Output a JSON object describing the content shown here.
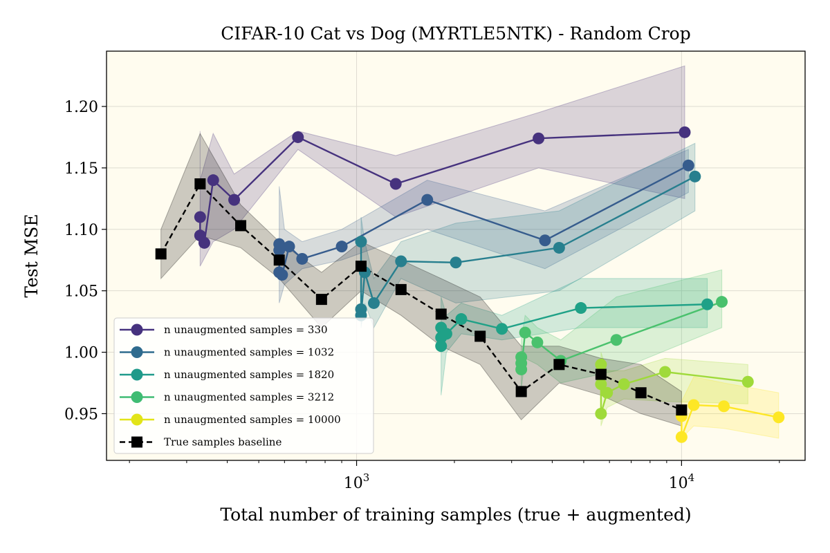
{
  "chart_data": {
    "type": "line",
    "title": "CIFAR-10 Cat vs Dog (MYRTLE5NTK) - Random Crop",
    "xlabel": "Total number of training samples (true + augmented)",
    "ylabel": "Test MSE",
    "x_scale": "log",
    "xlim": [
      170,
      24000
    ],
    "ylim": [
      0.912,
      1.245
    ],
    "x_ticks": [
      {
        "value": 1000,
        "base": "10",
        "exp": "3"
      },
      {
        "value": 10000,
        "base": "10",
        "exp": "4"
      }
    ],
    "y_ticks": [
      0.95,
      1.0,
      1.05,
      1.1,
      1.15,
      1.2
    ],
    "y_tick_labels": [
      "0.95",
      "1.00",
      "1.05",
      "1.10",
      "1.15",
      "1.20"
    ],
    "grid": true,
    "background_color": "#fffcef",
    "legend_position": "lower-left",
    "series": [
      {
        "name": "n unaugmented samples = 330",
        "color": "#46327e",
        "marker": "circle",
        "line_style": "solid",
        "points": [
          [
            330,
            1.11
          ],
          [
            330,
            1.095
          ],
          [
            340,
            1.089
          ],
          [
            362,
            1.14
          ],
          [
            420,
            1.124
          ],
          [
            660,
            1.175
          ],
          [
            1320,
            1.137
          ],
          [
            3630,
            1.174
          ],
          [
            10230,
            1.179
          ]
        ],
        "band": {
          "x": [
            330,
            330,
            362,
            420,
            660,
            1320,
            3630,
            10230
          ],
          "upper": [
            1.18,
            1.14,
            1.178,
            1.145,
            1.18,
            1.16,
            1.195,
            1.233
          ],
          "lower": [
            1.07,
            1.07,
            1.09,
            1.1,
            1.165,
            1.11,
            1.15,
            1.125
          ]
        }
      },
      {
        "name": "n unaugmented samples = 1032",
        "color": "#365c8d",
        "marker": "circle",
        "line_style": "solid",
        "points": [
          [
            578,
            1.088
          ],
          [
            578,
            1.083
          ],
          [
            578,
            1.065
          ],
          [
            590,
            1.063
          ],
          [
            620,
            1.086
          ],
          [
            680,
            1.076
          ],
          [
            900,
            1.086
          ],
          [
            1650,
            1.124
          ],
          [
            3800,
            1.091
          ],
          [
            10500,
            1.152
          ]
        ],
        "band": {
          "x": [
            578,
            600,
            680,
            900,
            1650,
            3800,
            10500
          ],
          "upper": [
            1.135,
            1.1,
            1.09,
            1.1,
            1.14,
            1.115,
            1.165
          ],
          "lower": [
            1.04,
            1.055,
            1.068,
            1.075,
            1.1,
            1.068,
            1.13
          ]
        }
      },
      {
        "name": "n unaugmented samples = 1820",
        "color": "#277f8e",
        "marker": "circle",
        "line_style": "solid",
        "points": [
          [
            1032,
            1.09
          ],
          [
            1032,
            1.035
          ],
          [
            1032,
            1.03
          ],
          [
            1060,
            1.065
          ],
          [
            1130,
            1.04
          ],
          [
            1370,
            1.074
          ],
          [
            2020,
            1.073
          ],
          [
            4200,
            1.085
          ],
          [
            11000,
            1.143
          ]
        ],
        "band": {
          "x": [
            1032,
            1060,
            1130,
            1370,
            2020,
            4200,
            11000
          ],
          "upper": [
            1.11,
            1.09,
            1.06,
            1.09,
            1.105,
            1.115,
            1.17
          ],
          "lower": [
            1.02,
            1.04,
            1.02,
            1.06,
            1.04,
            1.05,
            1.115
          ]
        }
      },
      {
        "name": "n unaugmented samples = 3212",
        "color": "#1fa187",
        "marker": "circle",
        "line_style": "solid",
        "points": [
          [
            1820,
            1.02
          ],
          [
            1820,
            1.012
          ],
          [
            1820,
            1.005
          ],
          [
            1890,
            1.015
          ],
          [
            2100,
            1.027
          ],
          [
            2800,
            1.019
          ],
          [
            4900,
            1.036
          ],
          [
            12000,
            1.039
          ]
        ],
        "band": {
          "x": [
            1820,
            1890,
            2100,
            2800,
            4900,
            12000
          ],
          "upper": [
            1.045,
            1.03,
            1.04,
            1.03,
            1.06,
            1.06
          ],
          "lower": [
            0.965,
            1.0,
            1.015,
            1.01,
            1.02,
            1.02
          ]
        }
      },
      {
        "name": "n unaugmented samples = 3212 (green)",
        "color": "#4ac16d",
        "marker": "circle",
        "line_style": "solid",
        "points": [
          [
            3212,
            0.996
          ],
          [
            3212,
            0.991
          ],
          [
            3212,
            0.986
          ],
          [
            3300,
            1.016
          ],
          [
            3600,
            1.008
          ],
          [
            4250,
            0.993
          ],
          [
            6300,
            1.01
          ],
          [
            13300,
            1.041
          ]
        ],
        "band": {
          "x": [
            3212,
            3300,
            3600,
            4250,
            6300,
            13300
          ],
          "upper": [
            1.01,
            1.03,
            1.02,
            1.01,
            1.045,
            1.067
          ],
          "lower": [
            0.97,
            0.995,
            0.99,
            0.975,
            0.985,
            1.02
          ]
        }
      },
      {
        "name": "n unaugmented samples = 10000",
        "color": "#9fda3a",
        "marker": "circle",
        "line_style": "solid",
        "points": [
          [
            5650,
            0.99
          ],
          [
            5650,
            0.974
          ],
          [
            5650,
            0.95
          ],
          [
            5900,
            0.967
          ],
          [
            6650,
            0.974
          ],
          [
            8900,
            0.984
          ],
          [
            16000,
            0.976
          ]
        ],
        "band": {
          "x": [
            5650,
            5900,
            6650,
            8900,
            16000
          ],
          "upper": [
            1.0,
            0.985,
            0.985,
            0.995,
            0.99
          ],
          "lower": [
            0.94,
            0.955,
            0.962,
            0.96,
            0.958
          ]
        }
      },
      {
        "name": "n unaugmented samples = 10000 (yellow)",
        "color": "#fde725",
        "marker": "circle",
        "line_style": "solid",
        "points": [
          [
            10000,
            0.948
          ],
          [
            10000,
            0.931
          ],
          [
            10900,
            0.957
          ],
          [
            13500,
            0.956
          ],
          [
            19900,
            0.947
          ]
        ],
        "band": {
          "x": [
            10000,
            10900,
            13500,
            19900
          ],
          "upper": [
            0.96,
            0.98,
            0.975,
            0.967
          ],
          "lower": [
            0.93,
            0.94,
            0.938,
            0.93
          ]
        }
      },
      {
        "name": "True samples baseline",
        "color": "#000000",
        "marker": "square",
        "line_style": "dashed",
        "points": [
          [
            250,
            1.08
          ],
          [
            330,
            1.137
          ],
          [
            440,
            1.103
          ],
          [
            578,
            1.075
          ],
          [
            780,
            1.043
          ],
          [
            1032,
            1.07
          ],
          [
            1370,
            1.051
          ],
          [
            1820,
            1.031
          ],
          [
            2400,
            1.013
          ],
          [
            3212,
            0.968
          ],
          [
            4200,
            0.99
          ],
          [
            5650,
            0.982
          ],
          [
            7500,
            0.967
          ],
          [
            10000,
            0.953
          ]
        ],
        "band": {
          "x": [
            250,
            330,
            440,
            578,
            780,
            1032,
            1370,
            1820,
            2400,
            3212,
            4200,
            5650,
            7500,
            10000
          ],
          "upper": [
            1.1,
            1.178,
            1.12,
            1.09,
            1.065,
            1.09,
            1.075,
            1.06,
            1.045,
            1.005,
            1.005,
            0.995,
            0.99,
            0.968
          ],
          "lower": [
            1.06,
            1.095,
            1.085,
            1.06,
            1.02,
            1.05,
            1.03,
            1.005,
            0.99,
            0.945,
            0.975,
            0.965,
            0.95,
            0.94
          ]
        }
      }
    ],
    "legend": [
      {
        "label": "n unaugmented samples = 330",
        "color": "#46327e",
        "marker": "circle",
        "line_style": "solid"
      },
      {
        "label": "n unaugmented samples = 1032",
        "color": "#2f6b8e",
        "marker": "circle",
        "line_style": "solid"
      },
      {
        "label": "n unaugmented samples = 1820",
        "color": "#1f9a8a",
        "marker": "circle",
        "line_style": "solid"
      },
      {
        "label": "n unaugmented samples = 3212",
        "color": "#3fbc73",
        "marker": "circle",
        "line_style": "solid"
      },
      {
        "label": "n unaugmented samples = 10000",
        "color": "#e2e418",
        "marker": "circle",
        "line_style": "solid"
      },
      {
        "label": "True samples baseline",
        "color": "#000000",
        "marker": "square",
        "line_style": "dashed"
      }
    ]
  }
}
